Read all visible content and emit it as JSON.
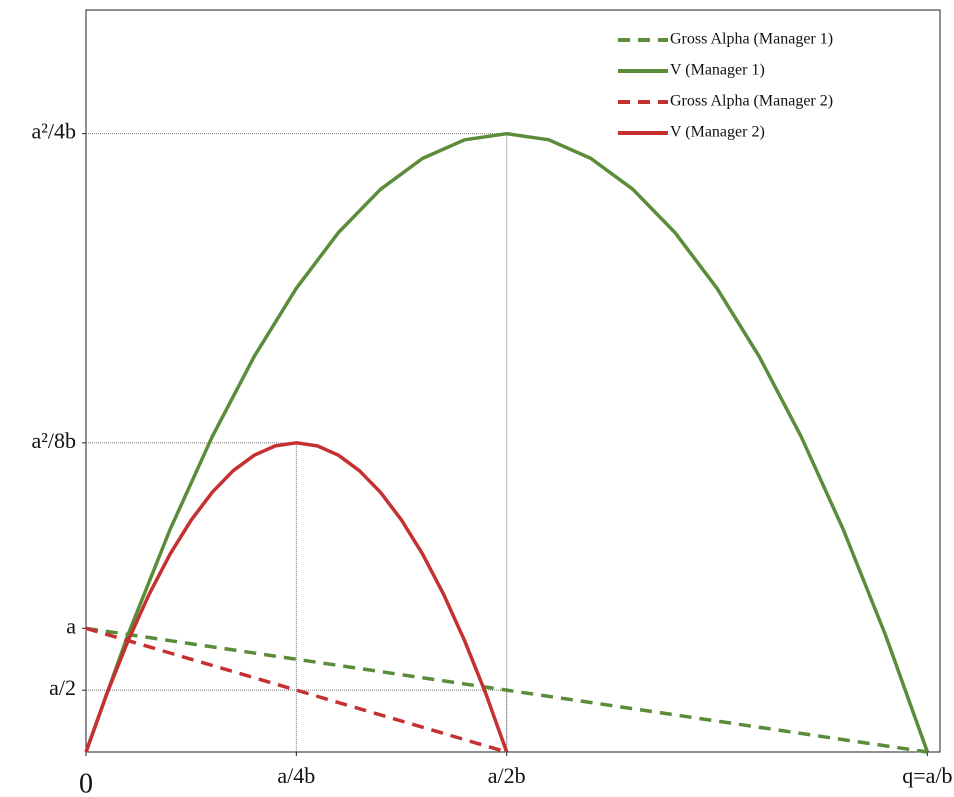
{
  "chart_data": {
    "type": "line",
    "xlim": [
      0,
      20.3
    ],
    "ylim": [
      0,
      12
    ],
    "xticks": [
      0,
      {
        "value": 5,
        "label": "a/4b"
      },
      {
        "value": 10,
        "label": "a/2b"
      },
      {
        "value": 20,
        "label": "q=a/b"
      }
    ],
    "yticks": [
      {
        "value": 1,
        "label": "a/2"
      },
      {
        "value": 2,
        "label": "a"
      },
      {
        "value": 5,
        "label": "a²/8b"
      },
      {
        "value": 10,
        "label": "a²/4b"
      }
    ],
    "legend": "upper right",
    "series": [
      {
        "name": "Gross Alpha (Manager 1)",
        "color": "#5b8c3a",
        "dash": true,
        "x": [
          0,
          20
        ],
        "values": [
          2,
          0
        ]
      },
      {
        "name": "V (Manager 1)",
        "color": "#5b8c3a",
        "dash": false,
        "x": [
          0,
          1,
          2,
          3,
          4,
          5,
          6,
          7,
          8,
          9,
          10,
          11,
          12,
          13,
          14,
          15,
          16,
          17,
          18,
          19,
          20
        ],
        "values": [
          0,
          1.9,
          3.6,
          5.1,
          6.4,
          7.5,
          8.4,
          9.1,
          9.6,
          9.9,
          10,
          9.9,
          9.6,
          9.1,
          8.4,
          7.5,
          6.4,
          5.1,
          3.6,
          1.9,
          0
        ]
      },
      {
        "name": "Gross Alpha (Manager 2)",
        "color": "#c53030",
        "dash": true,
        "x": [
          0,
          10
        ],
        "values": [
          2,
          0
        ]
      },
      {
        "name": "V (Manager 2)",
        "color": "#c53030",
        "dash": false,
        "x": [
          0,
          0.5,
          1,
          1.5,
          2,
          2.5,
          3,
          3.5,
          4,
          4.5,
          5,
          5.5,
          6,
          6.5,
          7,
          7.5,
          8,
          8.5,
          9,
          9.5,
          10
        ],
        "values": [
          0,
          0.95,
          1.8,
          2.55,
          3.2,
          3.75,
          4.2,
          4.55,
          4.8,
          4.95,
          5,
          4.95,
          4.8,
          4.55,
          4.2,
          3.75,
          3.2,
          2.55,
          1.8,
          0.95,
          0
        ]
      }
    ]
  }
}
